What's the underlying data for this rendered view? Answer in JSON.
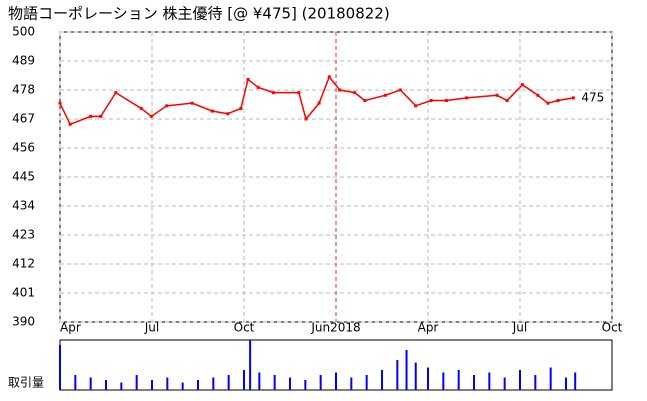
{
  "chart_data": {
    "type": "line",
    "title": "物語コーポレーション 株主優待  [@ ¥475] (20180822)",
    "xlim": [
      0,
      18
    ],
    "xticks": [
      {
        "value": 0,
        "label": "Apr"
      },
      {
        "value": 3,
        "label": "Jul"
      },
      {
        "value": 6,
        "label": "Oct"
      },
      {
        "value": 9,
        "label": "Jun2018"
      },
      {
        "value": 12,
        "label": "Apr"
      },
      {
        "value": 15,
        "label": "Jul"
      },
      {
        "value": 18,
        "label": "Oct"
      }
    ],
    "ylim": [
      390,
      500
    ],
    "yticks": [
      390,
      401,
      412,
      423,
      434,
      445,
      456,
      467,
      478,
      489,
      500
    ],
    "grid": true,
    "series": [
      {
        "name": "price",
        "color": "#ff0000",
        "x": [
          0,
          0.33,
          1,
          1.33,
          1.82,
          2.65,
          2.98,
          3.48,
          4.31,
          4.97,
          5.47,
          5.9,
          6.13,
          6.46,
          6.96,
          7.79,
          8.02,
          8.45,
          8.78,
          9.12,
          9.61,
          9.94,
          10.61,
          11.1,
          11.6,
          12.1,
          12.6,
          13.26,
          14.25,
          14.58,
          15.08,
          15.58,
          15.91,
          16.24,
          16.74
        ],
        "values": [
          473,
          465,
          468,
          468,
          477,
          471,
          468,
          472,
          473,
          470,
          469,
          471,
          482,
          479,
          477,
          477,
          467,
          473,
          483,
          478,
          477,
          474,
          476,
          478,
          472,
          474,
          474,
          475,
          476,
          474,
          480,
          476,
          473,
          474,
          475
        ]
      }
    ],
    "last_price": 475,
    "volume": {
      "name": "取引量",
      "color": "#0000ff",
      "ylim": [
        0,
        100
      ],
      "x": [
        0,
        0.5,
        1,
        1.5,
        2,
        2.5,
        3,
        3.5,
        4,
        4.5,
        5,
        5.5,
        6,
        6.2,
        6.5,
        7,
        7.5,
        8,
        8.5,
        9,
        9.5,
        10,
        10.5,
        11,
        11.3,
        11.6,
        12,
        12.5,
        13,
        13.5,
        14,
        14.5,
        15,
        15.5,
        16,
        16.5,
        16.8
      ],
      "values": [
        90,
        30,
        25,
        20,
        15,
        30,
        20,
        25,
        15,
        20,
        25,
        30,
        40,
        100,
        35,
        30,
        25,
        20,
        30,
        35,
        25,
        30,
        40,
        60,
        80,
        55,
        45,
        35,
        40,
        30,
        35,
        25,
        40,
        30,
        45,
        25,
        35
      ]
    }
  }
}
